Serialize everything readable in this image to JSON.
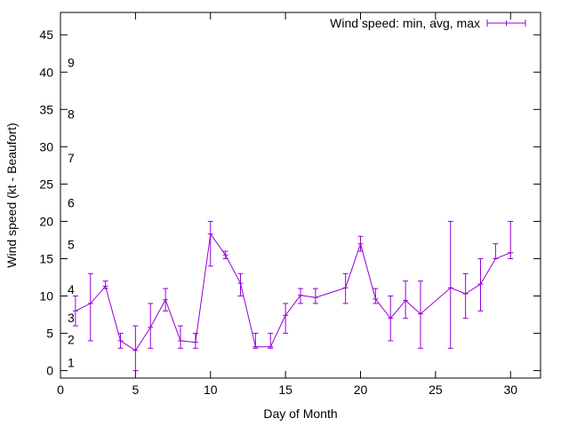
{
  "chart_data": {
    "type": "line",
    "xlabel": "Day of Month",
    "ylabel": "Wind speed (kt - Beaufort)",
    "xlim": [
      0,
      32
    ],
    "ylim": [
      -1,
      48
    ],
    "xticks": [
      0,
      5,
      10,
      15,
      20,
      25,
      30
    ],
    "yticks": [
      0,
      5,
      10,
      15,
      20,
      25,
      30,
      35,
      40,
      45
    ],
    "grid": false,
    "legend_position": "top-right",
    "series": [
      {
        "name": "Wind speed: min, avg, max",
        "color": "#9400d3",
        "points": [
          {
            "x": 1,
            "y": 8.0,
            "min": 6,
            "max": 10
          },
          {
            "x": 2,
            "y": 9.0,
            "min": 4,
            "max": 13
          },
          {
            "x": 3,
            "y": 11.3,
            "min": 11,
            "max": 12
          },
          {
            "x": 4,
            "y": 4.0,
            "min": 3,
            "max": 5
          },
          {
            "x": 5,
            "y": 2.7,
            "min": 0,
            "max": 6
          },
          {
            "x": 6,
            "y": 5.8,
            "min": 3,
            "max": 9
          },
          {
            "x": 7,
            "y": 9.5,
            "min": 8,
            "max": 11
          },
          {
            "x": 8,
            "y": 4.0,
            "min": 3,
            "max": 6
          },
          {
            "x": 9,
            "y": 3.8,
            "min": 3,
            "max": 5
          },
          {
            "x": 10,
            "y": 18.3,
            "min": 14,
            "max": 20
          },
          {
            "x": 11,
            "y": 15.5,
            "min": 15,
            "max": 16
          },
          {
            "x": 12,
            "y": 11.7,
            "min": 10,
            "max": 13
          },
          {
            "x": 13,
            "y": 3.2,
            "min": 3,
            "max": 5
          },
          {
            "x": 14,
            "y": 3.2,
            "min": 3,
            "max": 5
          },
          {
            "x": 15,
            "y": 7.4,
            "min": 5,
            "max": 9
          },
          {
            "x": 16,
            "y": 10.1,
            "min": 9,
            "max": 11
          },
          {
            "x": 17,
            "y": 9.8,
            "min": 9,
            "max": 11
          },
          {
            "x": 19,
            "y": 11.1,
            "min": 9,
            "max": 13
          },
          {
            "x": 20,
            "y": 17.0,
            "min": 16,
            "max": 18
          },
          {
            "x": 21,
            "y": 9.6,
            "min": 9,
            "max": 11
          },
          {
            "x": 22,
            "y": 7.0,
            "min": 4,
            "max": 10
          },
          {
            "x": 23,
            "y": 9.4,
            "min": 7,
            "max": 12
          },
          {
            "x": 24,
            "y": 7.6,
            "min": 3,
            "max": 12
          },
          {
            "x": 26,
            "y": 11.1,
            "min": 3,
            "max": 20
          },
          {
            "x": 27,
            "y": 10.3,
            "min": 7,
            "max": 13
          },
          {
            "x": 28,
            "y": 11.6,
            "min": 8,
            "max": 15
          },
          {
            "x": 29,
            "y": 15.0,
            "min": 15,
            "max": 17
          },
          {
            "x": 30,
            "y": 15.8,
            "min": 15,
            "max": 20
          }
        ]
      }
    ],
    "annotations": [
      {
        "text": "1",
        "y": 1.1
      },
      {
        "text": "2",
        "y": 4.2
      },
      {
        "text": "3",
        "y": 7.1
      },
      {
        "text": "4",
        "y": 10.9
      },
      {
        "text": "5",
        "y": 16.9
      },
      {
        "text": "6",
        "y": 22.5
      },
      {
        "text": "7",
        "y": 28.5
      },
      {
        "text": "8",
        "y": 34.4
      },
      {
        "text": "9",
        "y": 41.3
      }
    ]
  }
}
